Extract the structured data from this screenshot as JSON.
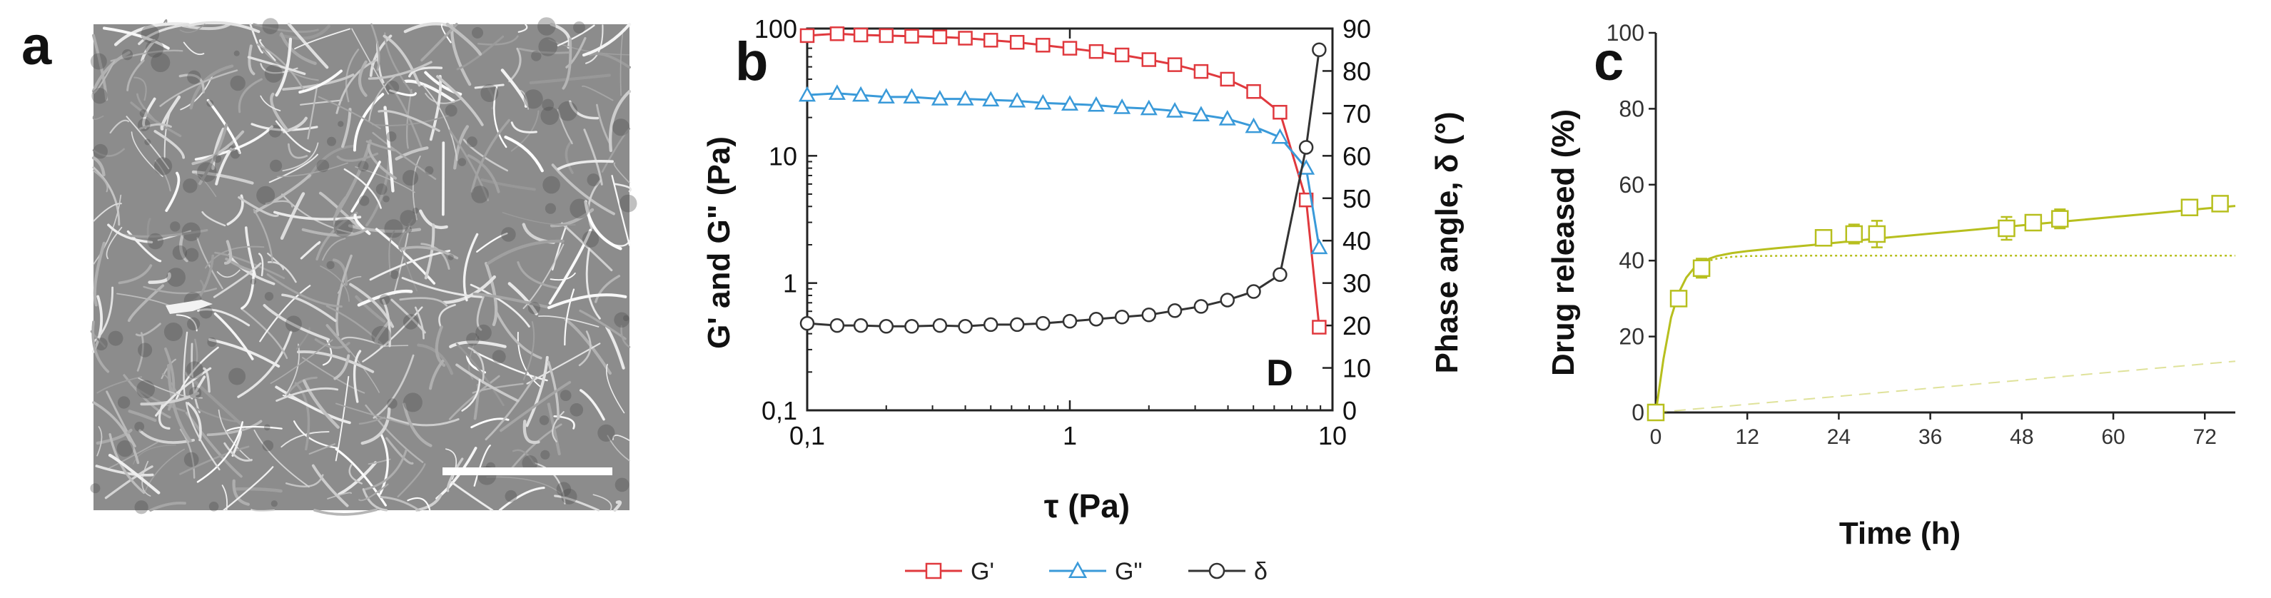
{
  "panels": {
    "a": {
      "label": "a",
      "description": "SEM micrograph of fibrillar hydrogel network"
    },
    "b": {
      "label": "b"
    },
    "c": {
      "label": "c"
    }
  },
  "chart_data": [
    {
      "type": "line",
      "panel": "b",
      "xlabel": "τ (Pa)",
      "ylabel": "G' and G\" (Pa)",
      "y2label": "Phase angle, δ (°)",
      "xscale": "log",
      "yscale": "log",
      "xlim": [
        0.1,
        10
      ],
      "ylim": [
        0.1,
        100
      ],
      "y2lim": [
        0,
        90
      ],
      "x_ticks": [
        "0,1",
        "1",
        "10"
      ],
      "y_ticks": [
        "0,1",
        "1",
        "10",
        "100"
      ],
      "y2_ticks": [
        "0",
        "10",
        "20",
        "30",
        "40",
        "50",
        "60",
        "70",
        "80",
        "90"
      ],
      "annotation": "D",
      "series": [
        {
          "name": "G'",
          "axis": "left",
          "color": "#e0393e",
          "marker": "square",
          "x": [
            0.1,
            0.13,
            0.16,
            0.2,
            0.25,
            0.32,
            0.4,
            0.5,
            0.63,
            0.79,
            1.0,
            1.26,
            1.58,
            2.0,
            2.51,
            3.16,
            3.98,
            5.01,
            6.31,
            7.94,
            8.9
          ],
          "y": [
            88,
            91,
            89,
            88,
            87,
            86,
            84,
            81,
            78,
            74,
            70,
            66,
            62,
            57,
            52,
            46,
            40,
            32,
            22,
            4.5,
            0.45
          ]
        },
        {
          "name": "G\"",
          "axis": "left",
          "color": "#3a9ad9",
          "marker": "triangle",
          "x": [
            0.1,
            0.13,
            0.16,
            0.2,
            0.25,
            0.32,
            0.4,
            0.5,
            0.63,
            0.79,
            1.0,
            1.26,
            1.58,
            2.0,
            2.51,
            3.16,
            3.98,
            5.01,
            6.31,
            7.94,
            8.9
          ],
          "y": [
            30,
            31,
            30,
            29,
            29,
            28,
            28,
            27.5,
            27,
            26,
            25.5,
            25,
            24,
            23.5,
            22.5,
            21,
            19.5,
            17,
            14,
            8,
            1.9
          ]
        },
        {
          "name": "δ",
          "axis": "right",
          "color": "#333333",
          "marker": "circle",
          "x": [
            0.1,
            0.13,
            0.16,
            0.2,
            0.25,
            0.32,
            0.4,
            0.5,
            0.63,
            0.79,
            1.0,
            1.26,
            1.58,
            2.0,
            2.51,
            3.16,
            3.98,
            5.01,
            6.31,
            7.94,
            8.9
          ],
          "y": [
            20.5,
            20,
            20,
            19.8,
            19.8,
            20,
            19.8,
            20.2,
            20.2,
            20.5,
            21,
            21.5,
            22,
            22.5,
            23.5,
            24.5,
            26,
            28,
            32,
            62,
            85
          ]
        }
      ],
      "legend": {
        "placement": "bottom",
        "entries": [
          {
            "label": "G'",
            "color": "#e0393e",
            "marker": "square"
          },
          {
            "label": "G\"",
            "color": "#3a9ad9",
            "marker": "triangle"
          },
          {
            "label": "δ",
            "color": "#333333",
            "marker": "circle"
          }
        ]
      }
    },
    {
      "type": "scatter",
      "panel": "c",
      "xlabel": "Time (h)",
      "ylabel": "Drug released (%)",
      "xlim": [
        0,
        76
      ],
      "ylim": [
        0,
        100
      ],
      "x_ticks": [
        "0",
        "12",
        "24",
        "36",
        "48",
        "60",
        "72"
      ],
      "y_ticks": [
        "0",
        "20",
        "40",
        "60",
        "80",
        "100"
      ],
      "color": "#b7bf1e",
      "series": [
        {
          "name": "data",
          "marker": "square",
          "x": [
            0,
            3,
            6,
            22,
            26,
            29,
            46,
            49.5,
            53,
            70,
            74
          ],
          "y": [
            0,
            30,
            38,
            46,
            47,
            47,
            48.5,
            50,
            51,
            54,
            55
          ],
          "err": [
            0,
            1.5,
            2.5,
            1.5,
            2.5,
            3.5,
            3,
            1.5,
            2.5,
            2,
            2
          ]
        },
        {
          "name": "fit",
          "style": "solid",
          "x": [
            0,
            1,
            2,
            3,
            4,
            5,
            6,
            7,
            8,
            10,
            12,
            16,
            20,
            24,
            30,
            36,
            42,
            48,
            54,
            60,
            66,
            72,
            76
          ],
          "y": [
            0,
            14,
            25,
            31.5,
            35.5,
            38,
            39.5,
            40.5,
            41.2,
            42,
            42.5,
            43.3,
            44,
            44.8,
            46,
            47.1,
            48.2,
            49.3,
            50.4,
            51.5,
            52.6,
            53.7,
            54.4
          ]
        },
        {
          "name": "burst component",
          "style": "dotted",
          "x": [
            0,
            1,
            2,
            3,
            4,
            5,
            6,
            8,
            10,
            12,
            20,
            40,
            60,
            76
          ],
          "y": [
            0,
            14,
            25,
            31.5,
            35.5,
            38,
            39.5,
            40.5,
            41,
            41.2,
            41.3,
            41.3,
            41.3,
            41.3
          ]
        },
        {
          "name": "sustained component",
          "style": "dashed",
          "x": [
            0,
            76
          ],
          "y": [
            0,
            13.5
          ]
        }
      ]
    }
  ],
  "scale_bar": {
    "visible": true
  }
}
